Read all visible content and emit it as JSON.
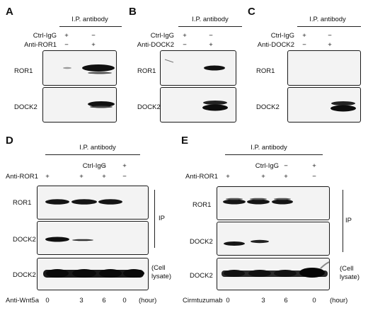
{
  "panels": {
    "A": {
      "letter": "A",
      "ip_header": "I.P. antibody",
      "row1": {
        "label": "Ctrl-IgG",
        "marks": [
          "+",
          "−"
        ]
      },
      "row2": {
        "label": "Anti-ROR1",
        "marks": [
          "−",
          "+"
        ]
      },
      "blots": [
        "ROR1",
        "DOCK2"
      ]
    },
    "B": {
      "letter": "B",
      "ip_header": "I.P. antibody",
      "row1": {
        "label": "Ctrl-IgG",
        "marks": [
          "+",
          "−"
        ]
      },
      "row2": {
        "label": "Anti-DOCK2",
        "marks": [
          "−",
          "+"
        ]
      },
      "blots": [
        "ROR1",
        "DOCK2"
      ]
    },
    "C": {
      "letter": "C",
      "ip_header": "I.P. antibody",
      "row1": {
        "label": "Ctrl-IgG",
        "marks": [
          "+",
          "−"
        ]
      },
      "row2": {
        "label": "Anti-DOCK2",
        "marks": [
          "−",
          "+"
        ]
      },
      "blots": [
        "ROR1",
        "DOCK2"
      ]
    },
    "D": {
      "letter": "D",
      "ip_header": "I.P. antibody",
      "row1": {
        "label": "Ctrl-IgG",
        "marks": [
          "−",
          "−",
          "−",
          "+"
        ]
      },
      "row2": {
        "label": "Anti-ROR1",
        "marks": [
          "+",
          "+",
          "+",
          "−"
        ]
      },
      "blots": [
        "ROR1",
        "DOCK2",
        "DOCK2"
      ],
      "ip_label": "IP",
      "lysate_label": [
        "(Cell",
        "lysate)"
      ],
      "treatment": {
        "label": "Anti-Wnt5a",
        "values": [
          "0",
          "3",
          "6",
          "0"
        ],
        "unit": "(hour)"
      }
    },
    "E": {
      "letter": "E",
      "ip_header": "I.P. antibody",
      "row1": {
        "label": "Ctrl-IgG",
        "marks": [
          "−",
          "−",
          "−",
          "+"
        ]
      },
      "row2": {
        "label": "Anti-ROR1",
        "marks": [
          "+",
          "+",
          "+",
          "−"
        ]
      },
      "blots": [
        "ROR1",
        "DOCK2",
        "DOCK2"
      ],
      "ip_label": "IP",
      "lysate_label": [
        "(Cell",
        "lysate)"
      ],
      "treatment": {
        "label": "Cirmtuzumab",
        "values": [
          "0",
          "3",
          "6",
          "0"
        ],
        "unit": "(hour)"
      }
    }
  }
}
